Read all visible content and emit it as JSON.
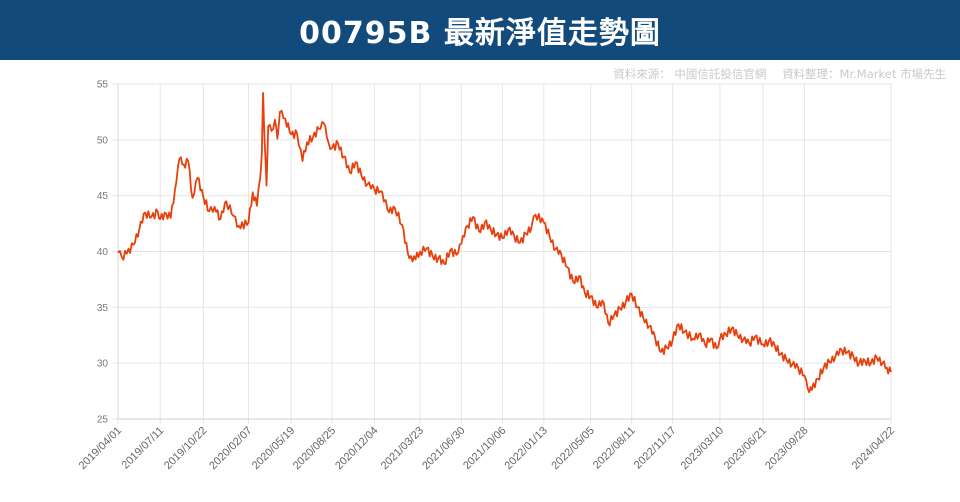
{
  "header": {
    "title": "00795B 最新淨值走勢圖"
  },
  "source": {
    "data_source": "資料來源： 中國信託投信官網",
    "compiled_by": "資料整理：Mr.Market 市場先生"
  },
  "colors": {
    "banner": "#134a7c",
    "line": "#e8400c",
    "grid": "#e6e6e6"
  },
  "chart_data": {
    "type": "line",
    "title": "00795B 最新淨值走勢圖",
    "xlabel": "",
    "ylabel": "",
    "ylim": [
      25,
      55
    ],
    "yticks": [
      25,
      30,
      35,
      40,
      45,
      50,
      55
    ],
    "xlim": [
      "2019-04-01",
      "2024-04-22"
    ],
    "x_tick_labels": [
      "2019/04/01",
      "2019/07/11",
      "2019/10/22",
      "2020/02/07",
      "2020/05/19",
      "2020/08/25",
      "2020/12/04",
      "2021/03/23",
      "2021/06/30",
      "2021/10/06",
      "2022/01/13",
      "2022/05/05",
      "2022/08/11",
      "2022/11/17",
      "2023/03/10",
      "2023/06/21",
      "2023/09/28",
      "2024/04/22"
    ],
    "x_tick_dates": [
      "2019-04-01",
      "2019-07-11",
      "2019-10-22",
      "2020-02-07",
      "2020-05-19",
      "2020-08-25",
      "2020-12-04",
      "2021-03-23",
      "2021-06-30",
      "2021-10-06",
      "2022-01-13",
      "2022-05-05",
      "2022-08-11",
      "2022-11-17",
      "2023-03-10",
      "2023-06-21",
      "2023-09-28",
      "2024-04-22"
    ],
    "grid": true,
    "legend": "none",
    "series": [
      {
        "points": [
          [
            "2019-04-01",
            39.9
          ],
          [
            "2019-04-10",
            39.5
          ],
          [
            "2019-04-22",
            39.8
          ],
          [
            "2019-05-08",
            40.6
          ],
          [
            "2019-05-22",
            42.0
          ],
          [
            "2019-06-05",
            43.5
          ],
          [
            "2019-06-20",
            43.1
          ],
          [
            "2019-07-05",
            43.6
          ],
          [
            "2019-07-11",
            42.9
          ],
          [
            "2019-07-25",
            43.4
          ],
          [
            "2019-08-05",
            43.0
          ],
          [
            "2019-08-15",
            45.5
          ],
          [
            "2019-08-26",
            48.3
          ],
          [
            "2019-09-05",
            47.8
          ],
          [
            "2019-09-16",
            48.1
          ],
          [
            "2019-09-26",
            44.8
          ],
          [
            "2019-10-08",
            46.6
          ],
          [
            "2019-10-22",
            44.9
          ],
          [
            "2019-11-05",
            43.6
          ],
          [
            "2019-11-18",
            44.0
          ],
          [
            "2019-12-02",
            42.9
          ],
          [
            "2019-12-16",
            44.5
          ],
          [
            "2020-01-02",
            43.2
          ],
          [
            "2020-01-15",
            42.3
          ],
          [
            "2020-02-07",
            42.6
          ],
          [
            "2020-02-17",
            45.3
          ],
          [
            "2020-02-27",
            44.1
          ],
          [
            "2020-03-06",
            46.6
          ],
          [
            "2020-03-10",
            49.0
          ],
          [
            "2020-03-13",
            54.2
          ],
          [
            "2020-03-17",
            49.5
          ],
          [
            "2020-03-21",
            45.9
          ],
          [
            "2020-03-25",
            51.2
          ],
          [
            "2020-04-02",
            50.8
          ],
          [
            "2020-04-10",
            51.8
          ],
          [
            "2020-04-16",
            50.1
          ],
          [
            "2020-04-22",
            52.5
          ],
          [
            "2020-05-05",
            51.9
          ],
          [
            "2020-05-19",
            50.5
          ],
          [
            "2020-06-02",
            50.6
          ],
          [
            "2020-06-15",
            48.1
          ],
          [
            "2020-06-26",
            49.8
          ],
          [
            "2020-07-10",
            50.2
          ],
          [
            "2020-07-24",
            51.0
          ],
          [
            "2020-08-05",
            51.5
          ],
          [
            "2020-08-16",
            49.8
          ],
          [
            "2020-08-25",
            49.3
          ],
          [
            "2020-09-08",
            49.7
          ],
          [
            "2020-09-22",
            48.5
          ],
          [
            "2020-10-06",
            47.1
          ],
          [
            "2020-10-20",
            48.0
          ],
          [
            "2020-11-03",
            46.8
          ],
          [
            "2020-11-17",
            46.0
          ],
          [
            "2020-12-04",
            45.6
          ],
          [
            "2020-12-18",
            45.4
          ],
          [
            "2020-12-31",
            44.6
          ],
          [
            "2021-01-08",
            43.5
          ],
          [
            "2021-01-22",
            43.9
          ],
          [
            "2021-02-08",
            42.4
          ],
          [
            "2021-02-22",
            39.8
          ],
          [
            "2021-03-05",
            39.1
          ],
          [
            "2021-03-23",
            40.0
          ],
          [
            "2021-04-08",
            40.3
          ],
          [
            "2021-04-22",
            39.6
          ],
          [
            "2021-05-06",
            39.4
          ],
          [
            "2021-05-20",
            38.9
          ],
          [
            "2021-06-03",
            40.1
          ],
          [
            "2021-06-18",
            39.7
          ],
          [
            "2021-06-30",
            40.7
          ],
          [
            "2021-07-14",
            42.3
          ],
          [
            "2021-07-28",
            43.1
          ],
          [
            "2021-08-11",
            41.8
          ],
          [
            "2021-08-25",
            42.6
          ],
          [
            "2021-09-08",
            42.0
          ],
          [
            "2021-09-22",
            41.5
          ],
          [
            "2021-10-06",
            41.2
          ],
          [
            "2021-10-20",
            42.0
          ],
          [
            "2021-11-03",
            41.4
          ],
          [
            "2021-11-17",
            40.8
          ],
          [
            "2021-12-01",
            41.6
          ],
          [
            "2021-12-15",
            42.3
          ],
          [
            "2021-12-24",
            43.3
          ],
          [
            "2022-01-13",
            42.6
          ],
          [
            "2022-01-27",
            41.3
          ],
          [
            "2022-02-10",
            40.2
          ],
          [
            "2022-02-24",
            39.7
          ],
          [
            "2022-03-10",
            38.6
          ],
          [
            "2022-03-24",
            37.3
          ],
          [
            "2022-04-07",
            37.8
          ],
          [
            "2022-04-21",
            36.3
          ],
          [
            "2022-05-05",
            36.0
          ],
          [
            "2022-05-19",
            35.0
          ],
          [
            "2022-06-02",
            35.6
          ],
          [
            "2022-06-16",
            33.6
          ],
          [
            "2022-06-30",
            34.3
          ],
          [
            "2022-07-14",
            34.9
          ],
          [
            "2022-07-28",
            35.5
          ],
          [
            "2022-08-11",
            36.2
          ],
          [
            "2022-08-25",
            35.0
          ],
          [
            "2022-09-08",
            34.0
          ],
          [
            "2022-09-22",
            33.3
          ],
          [
            "2022-10-06",
            32.3
          ],
          [
            "2022-10-20",
            31.0
          ],
          [
            "2022-11-03",
            31.4
          ],
          [
            "2022-11-17",
            32.1
          ],
          [
            "2022-12-01",
            33.5
          ],
          [
            "2022-12-15",
            32.8
          ],
          [
            "2023-01-05",
            32.2
          ],
          [
            "2023-01-19",
            32.6
          ],
          [
            "2023-02-02",
            31.7
          ],
          [
            "2023-02-16",
            32.2
          ],
          [
            "2023-03-02",
            31.3
          ],
          [
            "2023-03-10",
            32.2
          ],
          [
            "2023-03-24",
            32.6
          ],
          [
            "2023-04-07",
            33.1
          ],
          [
            "2023-04-21",
            32.5
          ],
          [
            "2023-05-05",
            32.1
          ],
          [
            "2023-05-19",
            31.8
          ],
          [
            "2023-06-02",
            32.4
          ],
          [
            "2023-06-21",
            31.7
          ],
          [
            "2023-07-05",
            32.0
          ],
          [
            "2023-07-19",
            31.6
          ],
          [
            "2023-08-02",
            30.8
          ],
          [
            "2023-08-16",
            30.3
          ],
          [
            "2023-08-30",
            29.9
          ],
          [
            "2023-09-13",
            29.6
          ],
          [
            "2023-09-28",
            28.9
          ],
          [
            "2023-10-06",
            27.7
          ],
          [
            "2023-10-16",
            27.6
          ],
          [
            "2023-10-30",
            28.6
          ],
          [
            "2023-11-13",
            29.6
          ],
          [
            "2023-11-27",
            30.1
          ],
          [
            "2023-12-11",
            30.6
          ],
          [
            "2023-12-26",
            31.2
          ],
          [
            "2024-01-09",
            31.0
          ],
          [
            "2024-01-23",
            30.6
          ],
          [
            "2024-02-06",
            30.0
          ],
          [
            "2024-02-20",
            30.2
          ],
          [
            "2024-03-05",
            30.0
          ],
          [
            "2024-03-19",
            30.5
          ],
          [
            "2024-04-02",
            30.0
          ],
          [
            "2024-04-12",
            29.6
          ],
          [
            "2024-04-22",
            29.2
          ]
        ]
      }
    ]
  }
}
